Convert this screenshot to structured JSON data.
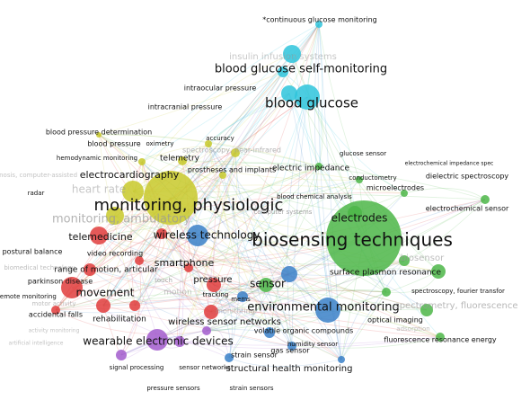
{
  "nodes": [
    {
      "label": "*continuous glucose monitoring"
    },
    {
      "label": "insulin infusion systems"
    },
    {
      "label": "blood glucose self-monitoring"
    },
    {
      "label": "intraocular pressure"
    },
    {
      "label": "blood glucose"
    },
    {
      "label": "intracranial pressure"
    },
    {
      "label": "blood pressure determination"
    },
    {
      "label": "accuracy"
    },
    {
      "label": "blood pressure"
    },
    {
      "label": "oximetry"
    },
    {
      "label": "spectroscopy, near-infrared"
    },
    {
      "label": "hemodynamic monitoring"
    },
    {
      "label": "telemetry"
    },
    {
      "label": "electrocardiography"
    },
    {
      "label": "prostheses and implants"
    },
    {
      "label": "electric impedance"
    },
    {
      "label": "glucose sensor"
    },
    {
      "label": "electrochemical impedance spec"
    },
    {
      "label": "conductometry"
    },
    {
      "label": "dielectric spectroscopy"
    },
    {
      "label": "microelectrodes"
    },
    {
      "label": "diagnosis, computer-assisted"
    },
    {
      "label": "radar"
    },
    {
      "label": "heart rate"
    },
    {
      "label": "blood chemical analysis"
    },
    {
      "label": "monitoring, physiologic"
    },
    {
      "label": "computer systems"
    },
    {
      "label": "electrochemical sensor"
    },
    {
      "label": "electrodes"
    },
    {
      "label": "monitoring, ambulatory"
    },
    {
      "label": "wireless technology"
    },
    {
      "label": "biosensing techniques"
    },
    {
      "label": "telemedicine"
    },
    {
      "label": "biosensor"
    },
    {
      "label": "postural balance"
    },
    {
      "label": "video recording"
    },
    {
      "label": "smartphone"
    },
    {
      "label": "surface plasmon resonance"
    },
    {
      "label": "biomedical technology"
    },
    {
      "label": "range of motion, articular"
    },
    {
      "label": "pressure"
    },
    {
      "label": "touch"
    },
    {
      "label": "parkinson disease"
    },
    {
      "label": "sensor"
    },
    {
      "label": "spectroscopy, fourier transfor"
    },
    {
      "label": "motion"
    },
    {
      "label": "remote monitoring"
    },
    {
      "label": "movement"
    },
    {
      "label": "tracking"
    },
    {
      "label": "mems"
    },
    {
      "label": "motor activity"
    },
    {
      "label": "environmental monitoring"
    },
    {
      "label": "spectrometry, fluorescence"
    },
    {
      "label": "accidental falls"
    },
    {
      "label": "rehabilitation"
    },
    {
      "label": "wireless sensor networks"
    },
    {
      "label": "optical imaging"
    },
    {
      "label": "monitoring"
    },
    {
      "label": "volatile organic compounds"
    },
    {
      "label": "adsorption"
    },
    {
      "label": "activity monitoring"
    },
    {
      "label": "wearable electronic devices"
    },
    {
      "label": "fluorescence resonance energy"
    },
    {
      "label": "humidity sensor"
    },
    {
      "label": "gas sensor"
    },
    {
      "label": "artificial intelligence"
    },
    {
      "label": "strain sensor"
    },
    {
      "label": "signal processing"
    },
    {
      "label": "sensor networks"
    },
    {
      "label": "structural health monitoring"
    },
    {
      "label": "pressure sensors"
    },
    {
      "label": "strain sensors"
    }
  ]
}
